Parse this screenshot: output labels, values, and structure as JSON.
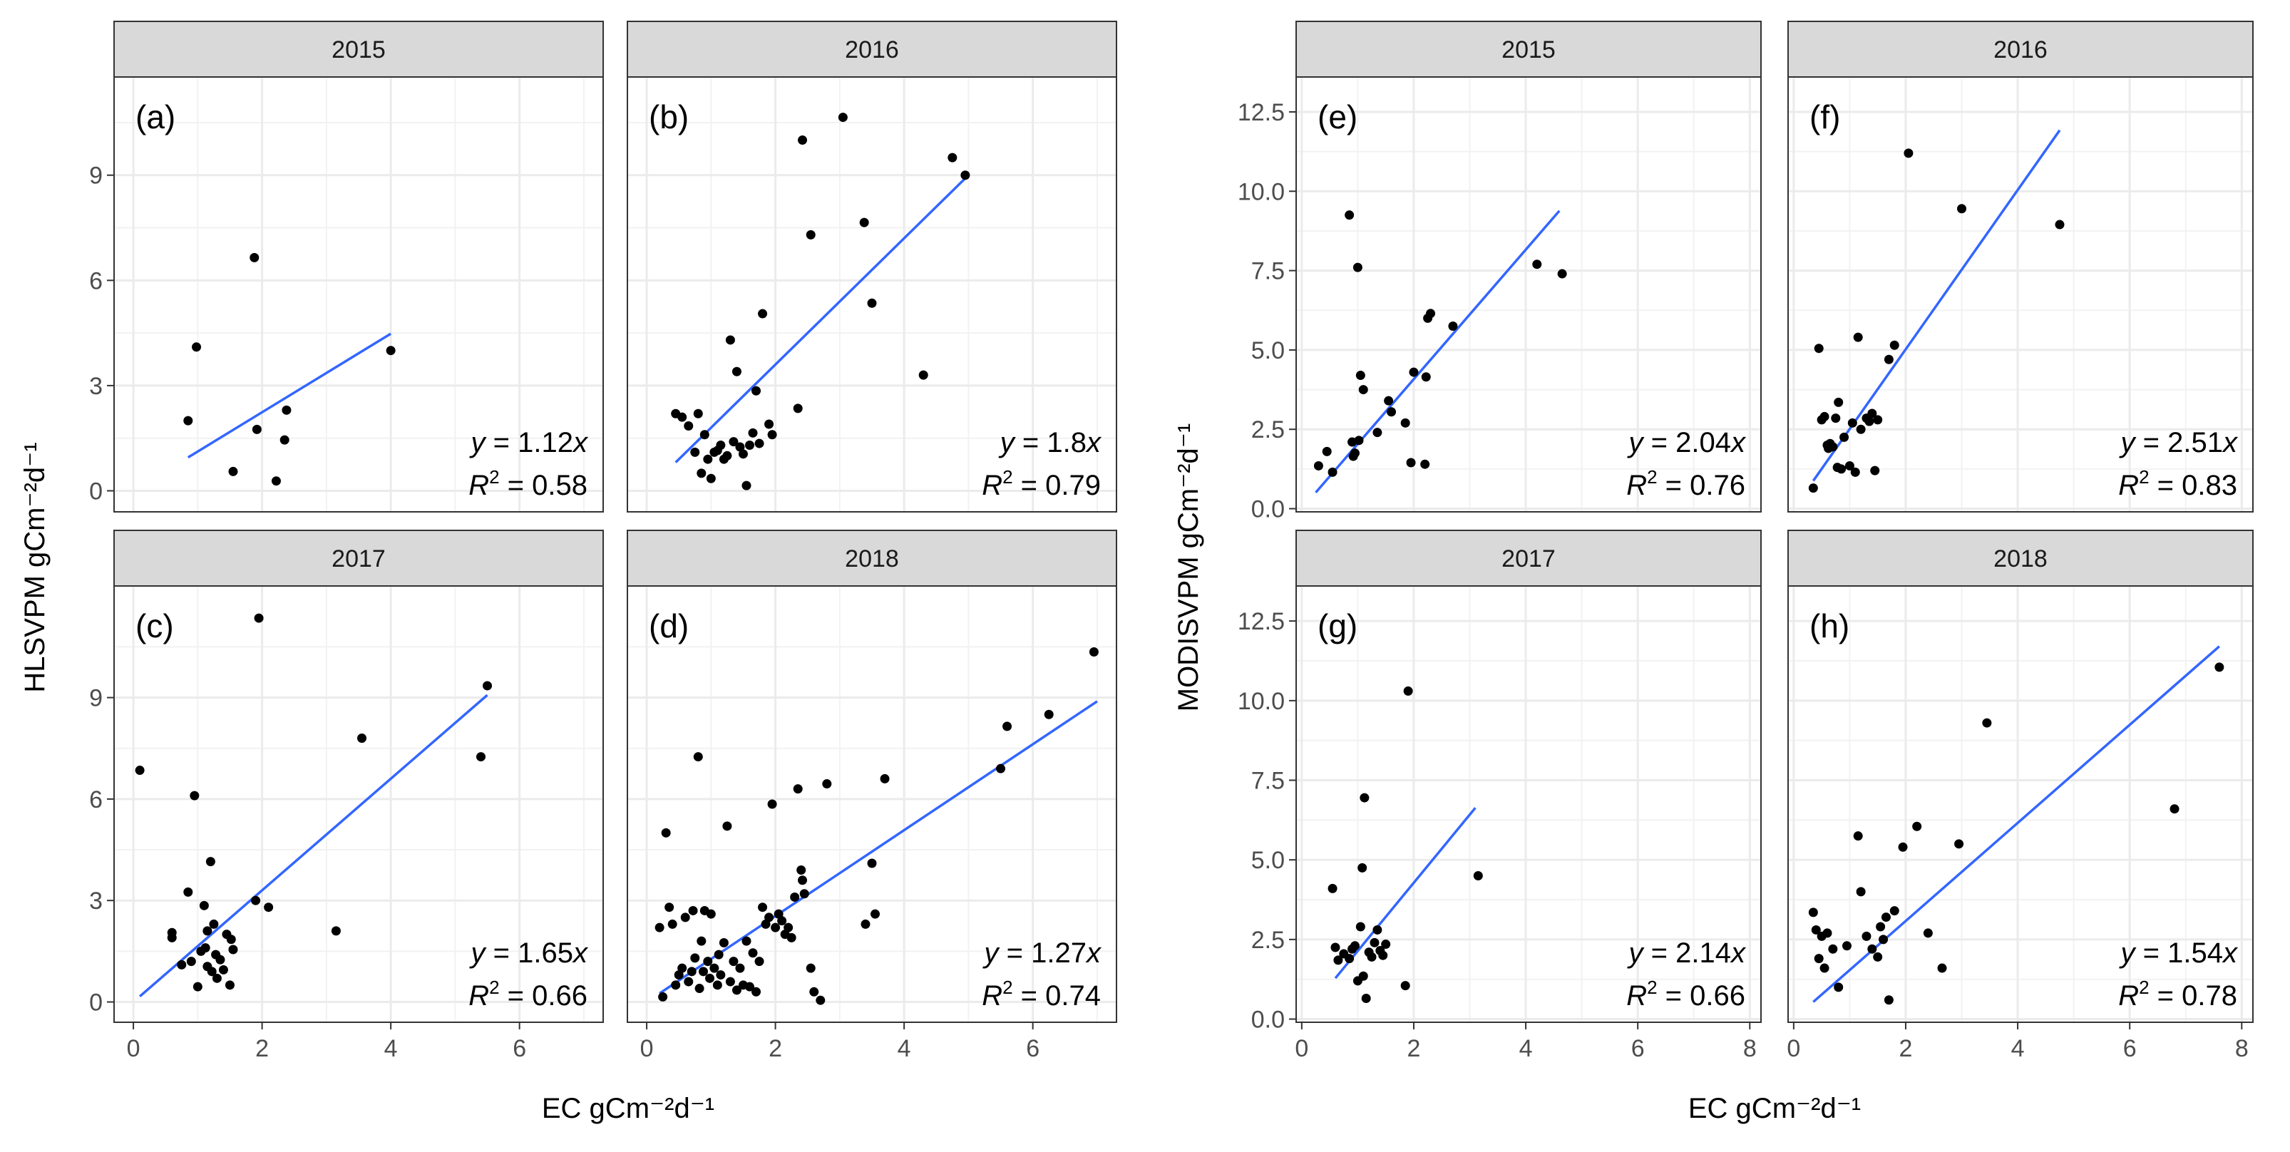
{
  "colors": {
    "point": "#000000",
    "fit_line": "#3366FF",
    "grid": "#EBEBEB",
    "strip_fill": "#D9D9D9",
    "panel_border": "#333333",
    "tick_label": "#4D4D4D"
  },
  "figures": [
    {
      "ylabel": "HLSVPM  gCm⁻²d⁻¹",
      "xlabel": "EC gCm⁻²d⁻¹",
      "xlim": [
        -0.3,
        7.3
      ],
      "xticks": [
        "0",
        "2",
        "4",
        "6"
      ],
      "xtick_values": [
        0,
        2,
        4,
        6
      ],
      "rows": [
        {
          "ylim": [
            -0.6,
            11.8
          ],
          "yticks": [
            "0",
            "3",
            "6",
            "9"
          ],
          "ytick_values": [
            0,
            3,
            6,
            9
          ]
        },
        {
          "ylim": [
            -0.6,
            12.3
          ],
          "yticks": [
            "0",
            "3",
            "6",
            "9"
          ],
          "ytick_values": [
            0,
            3,
            6,
            9
          ]
        }
      ]
    },
    {
      "ylabel": "MODISVPM  gCm⁻²d⁻¹",
      "xlabel": "EC gCm⁻²d⁻¹",
      "xlim": [
        -0.1,
        8.2
      ],
      "xticks": [
        "0",
        "2",
        "4",
        "6",
        "8"
      ],
      "xtick_values": [
        0,
        2,
        4,
        6,
        8
      ],
      "rows": [
        {
          "ylim": [
            -0.1,
            13.6
          ],
          "yticks": [
            "0.0",
            "2.5",
            "5.0",
            "7.5",
            "10.0",
            "12.5"
          ],
          "ytick_values": [
            0,
            2.5,
            5,
            7.5,
            10,
            12.5
          ]
        },
        {
          "ylim": [
            -0.1,
            13.6
          ],
          "yticks": [
            "0.0",
            "2.5",
            "5.0",
            "7.5",
            "10.0",
            "12.5"
          ],
          "ytick_values": [
            0,
            2.5,
            5,
            7.5,
            10,
            12.5
          ]
        }
      ]
    }
  ],
  "chart_data": [
    {
      "type": "scatter",
      "figure": 0,
      "row": 0,
      "col": 0,
      "strip": "2015",
      "tag": "(a)",
      "equation": {
        "lhs": "y",
        "eq": " = ",
        "slope": "1.12",
        "var": "x"
      },
      "r2": {
        "label": "R",
        "sup": "2",
        "eq": " = ",
        "value": "0.58"
      },
      "slope": 1.12,
      "line_x": [
        0.85,
        4.0
      ],
      "points": [
        [
          0.85,
          2.0
        ],
        [
          0.98,
          4.1
        ],
        [
          1.55,
          0.55
        ],
        [
          1.88,
          6.65
        ],
        [
          1.92,
          1.75
        ],
        [
          2.22,
          0.28
        ],
        [
          2.35,
          1.45
        ],
        [
          2.38,
          2.3
        ],
        [
          4.0,
          4.0
        ]
      ]
    },
    {
      "type": "scatter",
      "figure": 0,
      "row": 0,
      "col": 1,
      "strip": "2016",
      "tag": "(b)",
      "equation": {
        "lhs": "y",
        "eq": " = ",
        "slope": "1.8",
        "var": "x"
      },
      "r2": {
        "label": "R",
        "sup": "2",
        "eq": " = ",
        "value": "0.79"
      },
      "slope": 1.8,
      "line_x": [
        0.45,
        5.0
      ],
      "points": [
        [
          0.45,
          2.2
        ],
        [
          0.55,
          2.1
        ],
        [
          0.65,
          1.85
        ],
        [
          0.75,
          1.1
        ],
        [
          0.8,
          2.2
        ],
        [
          0.85,
          0.5
        ],
        [
          0.9,
          1.6
        ],
        [
          0.95,
          0.9
        ],
        [
          1.0,
          0.35
        ],
        [
          1.05,
          1.1
        ],
        [
          1.1,
          1.15
        ],
        [
          1.15,
          1.3
        ],
        [
          1.2,
          0.9
        ],
        [
          1.25,
          1.0
        ],
        [
          1.3,
          4.3
        ],
        [
          1.35,
          1.4
        ],
        [
          1.4,
          3.4
        ],
        [
          1.45,
          1.25
        ],
        [
          1.5,
          1.05
        ],
        [
          1.55,
          0.15
        ],
        [
          1.6,
          1.3
        ],
        [
          1.65,
          1.65
        ],
        [
          1.7,
          2.85
        ],
        [
          1.75,
          1.35
        ],
        [
          1.8,
          5.05
        ],
        [
          1.9,
          1.9
        ],
        [
          1.95,
          1.6
        ],
        [
          2.35,
          2.35
        ],
        [
          2.42,
          10.0
        ],
        [
          2.55,
          7.3
        ],
        [
          3.05,
          10.65
        ],
        [
          3.38,
          7.65
        ],
        [
          3.5,
          5.35
        ],
        [
          4.3,
          3.3
        ],
        [
          4.75,
          9.5
        ],
        [
          4.95,
          9.0
        ]
      ]
    },
    {
      "type": "scatter",
      "figure": 0,
      "row": 1,
      "col": 0,
      "strip": "2017",
      "tag": "(c)",
      "equation": {
        "lhs": "y",
        "eq": " = ",
        "slope": "1.65",
        "var": "x"
      },
      "r2": {
        "label": "R",
        "sup": "2",
        "eq": " = ",
        "value": "0.66"
      },
      "slope": 1.65,
      "line_x": [
        0.1,
        5.5
      ],
      "points": [
        [
          0.1,
          6.85
        ],
        [
          0.6,
          1.9
        ],
        [
          0.6,
          2.05
        ],
        [
          0.75,
          1.1
        ],
        [
          0.85,
          3.25
        ],
        [
          0.9,
          1.2
        ],
        [
          0.95,
          6.1
        ],
        [
          1.0,
          0.45
        ],
        [
          1.05,
          1.5
        ],
        [
          1.1,
          2.85
        ],
        [
          1.12,
          1.6
        ],
        [
          1.15,
          1.05
        ],
        [
          1.15,
          2.1
        ],
        [
          1.2,
          4.15
        ],
        [
          1.22,
          0.9
        ],
        [
          1.25,
          2.3
        ],
        [
          1.28,
          1.4
        ],
        [
          1.3,
          0.7
        ],
        [
          1.35,
          1.25
        ],
        [
          1.4,
          0.95
        ],
        [
          1.45,
          2.0
        ],
        [
          1.5,
          0.5
        ],
        [
          1.52,
          1.85
        ],
        [
          1.55,
          1.55
        ],
        [
          1.9,
          3.0
        ],
        [
          1.95,
          11.35
        ],
        [
          2.1,
          2.8
        ],
        [
          3.15,
          2.1
        ],
        [
          3.55,
          7.8
        ],
        [
          5.4,
          7.25
        ],
        [
          5.5,
          9.35
        ]
      ]
    },
    {
      "type": "scatter",
      "figure": 0,
      "row": 1,
      "col": 1,
      "strip": "2018",
      "tag": "(d)",
      "equation": {
        "lhs": "y",
        "eq": " = ",
        "slope": "1.27",
        "var": "x"
      },
      "r2": {
        "label": "R",
        "sup": "2",
        "eq": " = ",
        "value": "0.74"
      },
      "slope": 1.27,
      "line_x": [
        0.2,
        7.0
      ],
      "points": [
        [
          0.2,
          2.2
        ],
        [
          0.25,
          0.15
        ],
        [
          0.3,
          5.0
        ],
        [
          0.35,
          2.8
        ],
        [
          0.4,
          2.3
        ],
        [
          0.45,
          0.5
        ],
        [
          0.5,
          0.8
        ],
        [
          0.55,
          1.0
        ],
        [
          0.6,
          2.5
        ],
        [
          0.65,
          0.6
        ],
        [
          0.7,
          0.9
        ],
        [
          0.72,
          2.7
        ],
        [
          0.75,
          1.3
        ],
        [
          0.8,
          7.25
        ],
        [
          0.82,
          0.4
        ],
        [
          0.85,
          1.8
        ],
        [
          0.88,
          0.9
        ],
        [
          0.9,
          2.7
        ],
        [
          0.95,
          1.2
        ],
        [
          0.98,
          0.7
        ],
        [
          1.0,
          2.6
        ],
        [
          1.05,
          1.0
        ],
        [
          1.1,
          0.5
        ],
        [
          1.12,
          1.4
        ],
        [
          1.15,
          0.8
        ],
        [
          1.2,
          1.75
        ],
        [
          1.25,
          5.2
        ],
        [
          1.3,
          0.6
        ],
        [
          1.35,
          1.2
        ],
        [
          1.4,
          0.35
        ],
        [
          1.45,
          1.0
        ],
        [
          1.5,
          0.5
        ],
        [
          1.55,
          1.8
        ],
        [
          1.6,
          0.45
        ],
        [
          1.65,
          1.45
        ],
        [
          1.7,
          0.3
        ],
        [
          1.75,
          1.2
        ],
        [
          1.8,
          2.8
        ],
        [
          1.85,
          2.3
        ],
        [
          1.9,
          2.5
        ],
        [
          1.95,
          5.85
        ],
        [
          2.0,
          2.2
        ],
        [
          2.05,
          2.6
        ],
        [
          2.1,
          2.4
        ],
        [
          2.15,
          2.0
        ],
        [
          2.2,
          2.2
        ],
        [
          2.25,
          1.9
        ],
        [
          2.3,
          3.1
        ],
        [
          2.35,
          6.3
        ],
        [
          2.4,
          3.9
        ],
        [
          2.42,
          3.6
        ],
        [
          2.45,
          3.2
        ],
        [
          2.55,
          1.0
        ],
        [
          2.6,
          0.3
        ],
        [
          2.7,
          0.05
        ],
        [
          2.8,
          6.45
        ],
        [
          3.4,
          2.3
        ],
        [
          3.5,
          4.1
        ],
        [
          3.55,
          2.6
        ],
        [
          3.7,
          6.6
        ],
        [
          5.5,
          6.9
        ],
        [
          5.6,
          8.15
        ],
        [
          6.25,
          8.5
        ],
        [
          6.95,
          10.35
        ]
      ]
    },
    {
      "type": "scatter",
      "figure": 1,
      "row": 0,
      "col": 0,
      "strip": "2015",
      "tag": "(e)",
      "equation": {
        "lhs": "y",
        "eq": " = ",
        "slope": "2.04",
        "var": "x"
      },
      "r2": {
        "label": "R",
        "sup": "2",
        "eq": " = ",
        "value": "0.76"
      },
      "slope": 2.04,
      "line_x": [
        0.25,
        4.6
      ],
      "points": [
        [
          0.3,
          1.35
        ],
        [
          0.45,
          1.8
        ],
        [
          0.55,
          1.15
        ],
        [
          0.85,
          9.25
        ],
        [
          0.9,
          2.1
        ],
        [
          0.92,
          1.65
        ],
        [
          0.95,
          1.75
        ],
        [
          1.0,
          7.6
        ],
        [
          1.02,
          2.15
        ],
        [
          1.05,
          4.2
        ],
        [
          1.1,
          3.75
        ],
        [
          1.35,
          2.4
        ],
        [
          1.55,
          3.4
        ],
        [
          1.6,
          3.05
        ],
        [
          1.85,
          2.7
        ],
        [
          1.95,
          1.45
        ],
        [
          2.0,
          4.3
        ],
        [
          2.2,
          1.4
        ],
        [
          2.22,
          4.15
        ],
        [
          2.25,
          6.0
        ],
        [
          2.3,
          6.15
        ],
        [
          2.7,
          5.75
        ],
        [
          4.2,
          7.7
        ],
        [
          4.65,
          7.4
        ]
      ]
    },
    {
      "type": "scatter",
      "figure": 1,
      "row": 0,
      "col": 1,
      "strip": "2016",
      "tag": "(f)",
      "equation": {
        "lhs": "y",
        "eq": " = ",
        "slope": "2.51",
        "var": "x"
      },
      "r2": {
        "label": "R",
        "sup": "2",
        "eq": " = ",
        "value": "0.83"
      },
      "slope": 2.51,
      "line_x": [
        0.35,
        4.75
      ],
      "points": [
        [
          0.35,
          0.65
        ],
        [
          0.45,
          5.05
        ],
        [
          0.5,
          2.8
        ],
        [
          0.55,
          2.9
        ],
        [
          0.6,
          2.0
        ],
        [
          0.62,
          1.9
        ],
        [
          0.65,
          2.05
        ],
        [
          0.7,
          1.95
        ],
        [
          0.75,
          2.85
        ],
        [
          0.78,
          1.3
        ],
        [
          0.8,
          3.35
        ],
        [
          0.85,
          1.25
        ],
        [
          0.9,
          2.25
        ],
        [
          1.0,
          1.35
        ],
        [
          1.05,
          2.7
        ],
        [
          1.1,
          1.15
        ],
        [
          1.15,
          5.4
        ],
        [
          1.2,
          2.5
        ],
        [
          1.3,
          2.85
        ],
        [
          1.35,
          2.75
        ],
        [
          1.4,
          3.0
        ],
        [
          1.45,
          1.2
        ],
        [
          1.5,
          2.8
        ],
        [
          1.7,
          4.7
        ],
        [
          1.8,
          5.15
        ],
        [
          2.05,
          11.2
        ],
        [
          3.0,
          9.45
        ],
        [
          4.75,
          8.95
        ]
      ]
    },
    {
      "type": "scatter",
      "figure": 1,
      "row": 1,
      "col": 0,
      "strip": "2017",
      "tag": "(g)",
      "equation": {
        "lhs": "y",
        "eq": " = ",
        "slope": "2.14",
        "var": "x"
      },
      "r2": {
        "label": "R",
        "sup": "2",
        "eq": " = ",
        "value": "0.66"
      },
      "slope": 2.14,
      "line_x": [
        0.6,
        3.1
      ],
      "points": [
        [
          0.55,
          4.1
        ],
        [
          0.6,
          2.25
        ],
        [
          0.65,
          1.85
        ],
        [
          0.75,
          2.05
        ],
        [
          0.85,
          1.9
        ],
        [
          0.9,
          2.2
        ],
        [
          0.95,
          2.3
        ],
        [
          1.0,
          1.2
        ],
        [
          1.05,
          2.9
        ],
        [
          1.08,
          4.75
        ],
        [
          1.1,
          1.35
        ],
        [
          1.12,
          6.95
        ],
        [
          1.15,
          0.65
        ],
        [
          1.2,
          2.1
        ],
        [
          1.25,
          1.95
        ],
        [
          1.3,
          2.4
        ],
        [
          1.35,
          2.8
        ],
        [
          1.4,
          2.15
        ],
        [
          1.45,
          2.0
        ],
        [
          1.5,
          2.35
        ],
        [
          1.85,
          1.05
        ],
        [
          1.9,
          10.3
        ],
        [
          3.15,
          4.5
        ]
      ]
    },
    {
      "type": "scatter",
      "figure": 1,
      "row": 1,
      "col": 1,
      "strip": "2018",
      "tag": "(h)",
      "equation": {
        "lhs": "y",
        "eq": " = ",
        "slope": "1.54",
        "var": "x"
      },
      "r2": {
        "label": "R",
        "sup": "2",
        "eq": " = ",
        "value": "0.78"
      },
      "slope": 1.54,
      "line_x": [
        0.35,
        7.6
      ],
      "points": [
        [
          0.35,
          3.35
        ],
        [
          0.4,
          2.8
        ],
        [
          0.45,
          1.9
        ],
        [
          0.5,
          2.6
        ],
        [
          0.55,
          1.6
        ],
        [
          0.6,
          2.7
        ],
        [
          0.7,
          2.2
        ],
        [
          0.8,
          1.0
        ],
        [
          0.95,
          2.3
        ],
        [
          1.15,
          5.75
        ],
        [
          1.2,
          4.0
        ],
        [
          1.3,
          2.6
        ],
        [
          1.4,
          2.2
        ],
        [
          1.5,
          1.95
        ],
        [
          1.55,
          2.9
        ],
        [
          1.6,
          2.5
        ],
        [
          1.65,
          3.2
        ],
        [
          1.7,
          0.6
        ],
        [
          1.8,
          3.4
        ],
        [
          1.95,
          5.4
        ],
        [
          2.2,
          6.05
        ],
        [
          2.4,
          2.7
        ],
        [
          2.65,
          1.6
        ],
        [
          2.95,
          5.5
        ],
        [
          3.45,
          9.3
        ],
        [
          6.8,
          6.6
        ],
        [
          7.6,
          11.05
        ]
      ]
    }
  ]
}
